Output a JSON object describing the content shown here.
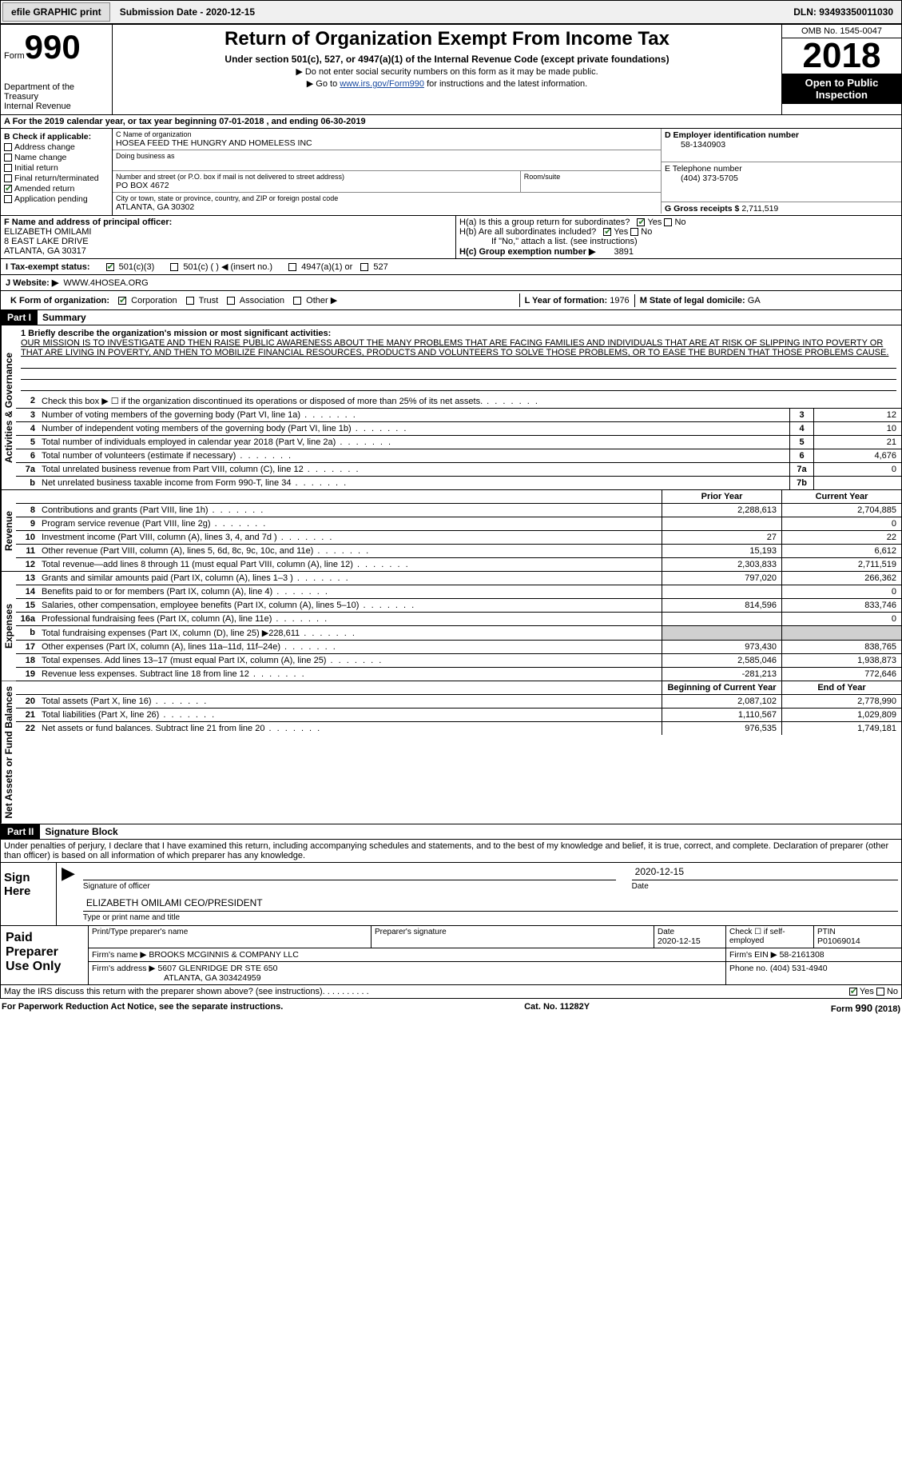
{
  "topbar": {
    "efile": "efile GRAPHIC print",
    "submission": "Submission Date - 2020-12-15",
    "dln_label": "DLN:",
    "dln": "93493350011030"
  },
  "header": {
    "form_prefix": "Form",
    "form_number": "990",
    "dept1": "Department of the Treasury",
    "dept2": "Internal Revenue",
    "title": "Return of Organization Exempt From Income Tax",
    "sub1": "Under section 501(c), 527, or 4947(a)(1) of the Internal Revenue Code (except private foundations)",
    "sub2": "▶ Do not enter social security numbers on this form as it may be made public.",
    "sub3_pre": "▶ Go to ",
    "sub3_link": "www.irs.gov/Form990",
    "sub3_post": " for instructions and the latest information.",
    "omb": "OMB No. 1545-0047",
    "year": "2018",
    "inspect": "Open to Public Inspection"
  },
  "period": "A For the 2019 calendar year, or tax year beginning 07-01-2018   , and ending 06-30-2019",
  "boxB": {
    "hdr": "B Check if applicable:",
    "items": [
      {
        "label": "Address change",
        "checked": false
      },
      {
        "label": "Name change",
        "checked": false
      },
      {
        "label": "Initial return",
        "checked": false
      },
      {
        "label": "Final return/terminated",
        "checked": false
      },
      {
        "label": "Amended return",
        "checked": true
      },
      {
        "label": "Application pending",
        "checked": false
      }
    ]
  },
  "boxC": {
    "label": "C Name of organization",
    "name": "HOSEA FEED THE HUNGRY AND HOMELESS INC",
    "dba_label": "Doing business as",
    "addr_label": "Number and street (or P.O. box if mail is not delivered to street address)",
    "room_label": "Room/suite",
    "addr": "PO BOX 4672",
    "city_label": "City or town, state or province, country, and ZIP or foreign postal code",
    "city": "ATLANTA, GA  30302"
  },
  "boxD": {
    "label": "D Employer identification number",
    "value": "58-1340903"
  },
  "boxE": {
    "label": "E Telephone number",
    "value": "(404) 373-5705"
  },
  "boxG": {
    "label": "G Gross receipts $",
    "value": "2,711,519"
  },
  "boxF": {
    "label": "F Name and address of principal officer:",
    "name": "ELIZABETH OMILAMI",
    "addr1": "8 EAST LAKE DRIVE",
    "addr2": "ATLANTA, GA  30317"
  },
  "boxH": {
    "a": "H(a)  Is this a group return for subordinates?",
    "b": "H(b)  Are all subordinates included?",
    "b_note": "If \"No,\" attach a list. (see instructions)",
    "c_label": "H(c)  Group exemption number ▶",
    "c_val": "3891"
  },
  "boxI": {
    "label": "I   Tax-exempt status:",
    "opts": [
      "501(c)(3)",
      "501(c) (  ) ◀ (insert no.)",
      "4947(a)(1) or",
      "527"
    ]
  },
  "boxJ": {
    "label": "J   Website: ▶",
    "value": "WWW.4HOSEA.ORG"
  },
  "boxK": {
    "label": "K Form of organization:",
    "opts": [
      "Corporation",
      "Trust",
      "Association",
      "Other ▶"
    ]
  },
  "boxL": {
    "label": "L Year of formation:",
    "value": "1976"
  },
  "boxM": {
    "label": "M State of legal domicile:",
    "value": "GA"
  },
  "part1": {
    "num": "Part I",
    "title": "Summary"
  },
  "mission": {
    "label": "1  Briefly describe the organization's mission or most significant activities:",
    "text": "OUR MISSION IS TO INVESTIGATE AND THEN RAISE PUBLIC AWARENESS ABOUT THE MANY PROBLEMS THAT ARE FACING FAMILIES AND INDIVIDUALS THAT ARE AT RISK OF SLIPPING INTO POVERTY OR THAT ARE LIVING IN POVERTY, AND THEN TO MOBILIZE FINANCIAL RESOURCES, PRODUCTS AND VOLUNTEERS TO SOLVE THOSE PROBLEMS, OR TO EASE THE BURDEN THAT THOSE PROBLEMS CAUSE."
  },
  "sections": {
    "gov": "Activities & Governance",
    "rev": "Revenue",
    "exp": "Expenses",
    "net": "Net Assets or Fund Balances"
  },
  "gov_lines": [
    {
      "n": "2",
      "d": "Check this box ▶ ☐  if the organization discontinued its operations or disposed of more than 25% of its net assets."
    },
    {
      "n": "3",
      "d": "Number of voting members of the governing body (Part VI, line 1a)",
      "box": "3",
      "v": "12"
    },
    {
      "n": "4",
      "d": "Number of independent voting members of the governing body (Part VI, line 1b)",
      "box": "4",
      "v": "10"
    },
    {
      "n": "5",
      "d": "Total number of individuals employed in calendar year 2018 (Part V, line 2a)",
      "box": "5",
      "v": "21"
    },
    {
      "n": "6",
      "d": "Total number of volunteers (estimate if necessary)",
      "box": "6",
      "v": "4,676"
    },
    {
      "n": "7a",
      "d": "Total unrelated business revenue from Part VIII, column (C), line 12",
      "box": "7a",
      "v": "0"
    },
    {
      "n": "b",
      "d": "Net unrelated business taxable income from Form 990-T, line 34",
      "box": "7b",
      "v": ""
    }
  ],
  "col_hdrs": {
    "prior": "Prior Year",
    "current": "Current Year"
  },
  "rev_lines": [
    {
      "n": "8",
      "d": "Contributions and grants (Part VIII, line 1h)",
      "p": "2,288,613",
      "c": "2,704,885"
    },
    {
      "n": "9",
      "d": "Program service revenue (Part VIII, line 2g)",
      "p": "",
      "c": "0"
    },
    {
      "n": "10",
      "d": "Investment income (Part VIII, column (A), lines 3, 4, and 7d )",
      "p": "27",
      "c": "22"
    },
    {
      "n": "11",
      "d": "Other revenue (Part VIII, column (A), lines 5, 6d, 8c, 9c, 10c, and 11e)",
      "p": "15,193",
      "c": "6,612"
    },
    {
      "n": "12",
      "d": "Total revenue—add lines 8 through 11 (must equal Part VIII, column (A), line 12)",
      "p": "2,303,833",
      "c": "2,711,519"
    }
  ],
  "exp_lines": [
    {
      "n": "13",
      "d": "Grants and similar amounts paid (Part IX, column (A), lines 1–3 )",
      "p": "797,020",
      "c": "266,362"
    },
    {
      "n": "14",
      "d": "Benefits paid to or for members (Part IX, column (A), line 4)",
      "p": "",
      "c": "0"
    },
    {
      "n": "15",
      "d": "Salaries, other compensation, employee benefits (Part IX, column (A), lines 5–10)",
      "p": "814,596",
      "c": "833,746"
    },
    {
      "n": "16a",
      "d": "Professional fundraising fees (Part IX, column (A), line 11e)",
      "p": "",
      "c": "0"
    },
    {
      "n": "b",
      "d": "Total fundraising expenses (Part IX, column (D), line 25) ▶228,611",
      "p": "SHADE",
      "c": "SHADE"
    },
    {
      "n": "17",
      "d": "Other expenses (Part IX, column (A), lines 11a–11d, 11f–24e)",
      "p": "973,430",
      "c": "838,765"
    },
    {
      "n": "18",
      "d": "Total expenses. Add lines 13–17 (must equal Part IX, column (A), line 25)",
      "p": "2,585,046",
      "c": "1,938,873"
    },
    {
      "n": "19",
      "d": "Revenue less expenses. Subtract line 18 from line 12",
      "p": "-281,213",
      "c": "772,646"
    }
  ],
  "net_hdrs": {
    "beg": "Beginning of Current Year",
    "end": "End of Year"
  },
  "net_lines": [
    {
      "n": "20",
      "d": "Total assets (Part X, line 16)",
      "p": "2,087,102",
      "c": "2,778,990"
    },
    {
      "n": "21",
      "d": "Total liabilities (Part X, line 26)",
      "p": "1,110,567",
      "c": "1,029,809"
    },
    {
      "n": "22",
      "d": "Net assets or fund balances. Subtract line 21 from line 20",
      "p": "976,535",
      "c": "1,749,181"
    }
  ],
  "part2": {
    "num": "Part II",
    "title": "Signature Block"
  },
  "perjury": "Under penalties of perjury, I declare that I have examined this return, including accompanying schedules and statements, and to the best of my knowledge and belief, it is true, correct, and complete. Declaration of preparer (other than officer) is based on all information of which preparer has any knowledge.",
  "sign": {
    "here": "Sign Here",
    "sig_label": "Signature of officer",
    "date_label": "Date",
    "date": "2020-12-15",
    "name": "ELIZABETH OMILAMI CEO/PRESIDENT",
    "name_label": "Type or print name and title"
  },
  "prep": {
    "title": "Paid Preparer Use Only",
    "h1": "Print/Type preparer's name",
    "h2": "Preparer's signature",
    "h3": "Date",
    "date": "2020-12-15",
    "h4": "Check ☐ if self-employed",
    "h5": "PTIN",
    "ptin": "P01069014",
    "firm_label": "Firm's name   ▶",
    "firm": "BROOKS MCGINNIS & COMPANY LLC",
    "ein_label": "Firm's EIN ▶",
    "ein": "58-2161308",
    "addr_label": "Firm's address ▶",
    "addr1": "5607 GLENRIDGE DR STE 650",
    "addr2": "ATLANTA, GA  303424959",
    "phone_label": "Phone no.",
    "phone": "(404) 531-4940"
  },
  "discuss": "May the IRS discuss this return with the preparer shown above? (see instructions)",
  "footer": {
    "left": "For Paperwork Reduction Act Notice, see the separate instructions.",
    "mid": "Cat. No. 11282Y",
    "right": "Form 990 (2018)"
  },
  "yes": "Yes",
  "no": "No"
}
